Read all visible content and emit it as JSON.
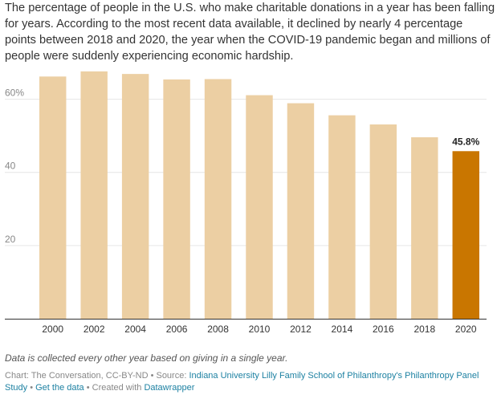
{
  "headline": "The percentage of people in the U.S. who make charitable donations in a year has been falling for years. According to the most recent data available, it declined by nearly 4 percentage points between 2018 and 2020, the year when the COVID-19 pandemic began and millions of people were suddenly experiencing economic hardship.",
  "chart_data": {
    "type": "bar",
    "title": "",
    "xlabel": "",
    "ylabel": "",
    "categories": [
      "2000",
      "2002",
      "2004",
      "2006",
      "2008",
      "2010",
      "2012",
      "2014",
      "2016",
      "2018",
      "2020"
    ],
    "values": [
      66.2,
      67.6,
      66.9,
      65.4,
      65.5,
      61.1,
      58.9,
      55.6,
      53.1,
      49.6,
      45.8
    ],
    "ylim": [
      0,
      70
    ],
    "yticks": [
      20,
      40,
      60
    ],
    "ytick_labels": [
      "20",
      "40",
      "60%"
    ],
    "grid": true,
    "highlight": {
      "category": "2020",
      "label": "45.8%"
    },
    "colors": {
      "bar": "#eccfa3",
      "highlight": "#c97600",
      "grid": "#e6e6e6",
      "axis": "#333333",
      "tick_text": "#888888"
    }
  },
  "note": "Data is collected every other year based on giving in a single year.",
  "footer": {
    "prefix": "Chart: The Conversation, CC-BY-ND • Source: ",
    "source_link": "Indiana University Lilly Family School of Philanthropy's Philanthropy Panel Study",
    "separator1": " • ",
    "data_link": "Get the data",
    "separator2": " • Created with ",
    "tool_link": "Datawrapper"
  }
}
